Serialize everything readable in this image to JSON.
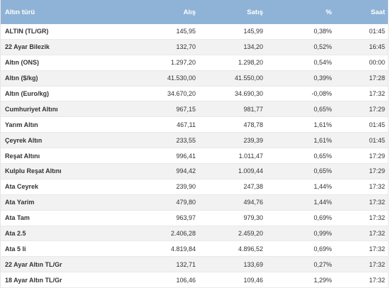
{
  "columns": [
    "Altın türü",
    "Alış",
    "Satış",
    "%",
    "Saat"
  ],
  "rows": [
    {
      "name": "ALTIN (TL/GR)",
      "buy": "145,95",
      "sell": "145,99",
      "pct": "0,38%",
      "time": "01:45"
    },
    {
      "name": "22 Ayar Bilezik",
      "buy": "132,70",
      "sell": "134,20",
      "pct": "0,52%",
      "time": "16:45"
    },
    {
      "name": "Altın (ONS)",
      "buy": "1.297,20",
      "sell": "1.298,20",
      "pct": "0,54%",
      "time": "00:00"
    },
    {
      "name": "Altın ($/kg)",
      "buy": "41.530,00",
      "sell": "41.550,00",
      "pct": "0,39%",
      "time": "17:28"
    },
    {
      "name": "Altın (Euro/kg)",
      "buy": "34.670,20",
      "sell": "34.690,30",
      "pct": "-0,08%",
      "time": "17:32"
    },
    {
      "name": "Cumhuriyet Altını",
      "buy": "967,15",
      "sell": "981,77",
      "pct": "0,65%",
      "time": "17:29"
    },
    {
      "name": "Yarım Altın",
      "buy": "467,11",
      "sell": "478,78",
      "pct": "1,61%",
      "time": "01:45"
    },
    {
      "name": "Çeyrek Altın",
      "buy": "233,55",
      "sell": "239,39",
      "pct": "1,61%",
      "time": "01:45"
    },
    {
      "name": "Reşat Altını",
      "buy": "996,41",
      "sell": "1.011,47",
      "pct": "0,65%",
      "time": "17:29"
    },
    {
      "name": "Kulplu Reşat Altını",
      "buy": "994,42",
      "sell": "1.009,44",
      "pct": "0,65%",
      "time": "17:29"
    },
    {
      "name": "Ata Ceyrek",
      "buy": "239,90",
      "sell": "247,38",
      "pct": "1,44%",
      "time": "17:32"
    },
    {
      "name": "Ata Yarim",
      "buy": "479,80",
      "sell": "494,76",
      "pct": "1,44%",
      "time": "17:32"
    },
    {
      "name": "Ata Tam",
      "buy": "963,97",
      "sell": "979,30",
      "pct": "0,69%",
      "time": "17:32"
    },
    {
      "name": "Ata 2.5",
      "buy": "2.406,28",
      "sell": "2.459,20",
      "pct": "0,99%",
      "time": "17:32"
    },
    {
      "name": "Ata 5 li",
      "buy": "4.819,84",
      "sell": "4.896,52",
      "pct": "0,69%",
      "time": "17:32"
    },
    {
      "name": "22 Ayar Altın TL/Gr",
      "buy": "132,71",
      "sell": "133,69",
      "pct": "0,27%",
      "time": "17:32"
    },
    {
      "name": "18 Ayar Altın TL/Gr",
      "buy": "106,46",
      "sell": "109,46",
      "pct": "1,29%",
      "time": "17:32"
    }
  ],
  "colors": {
    "header_bg": "#8fb3d6",
    "header_text": "#ffffff",
    "stripe": "#f2f2f2",
    "text": "#333333"
  }
}
